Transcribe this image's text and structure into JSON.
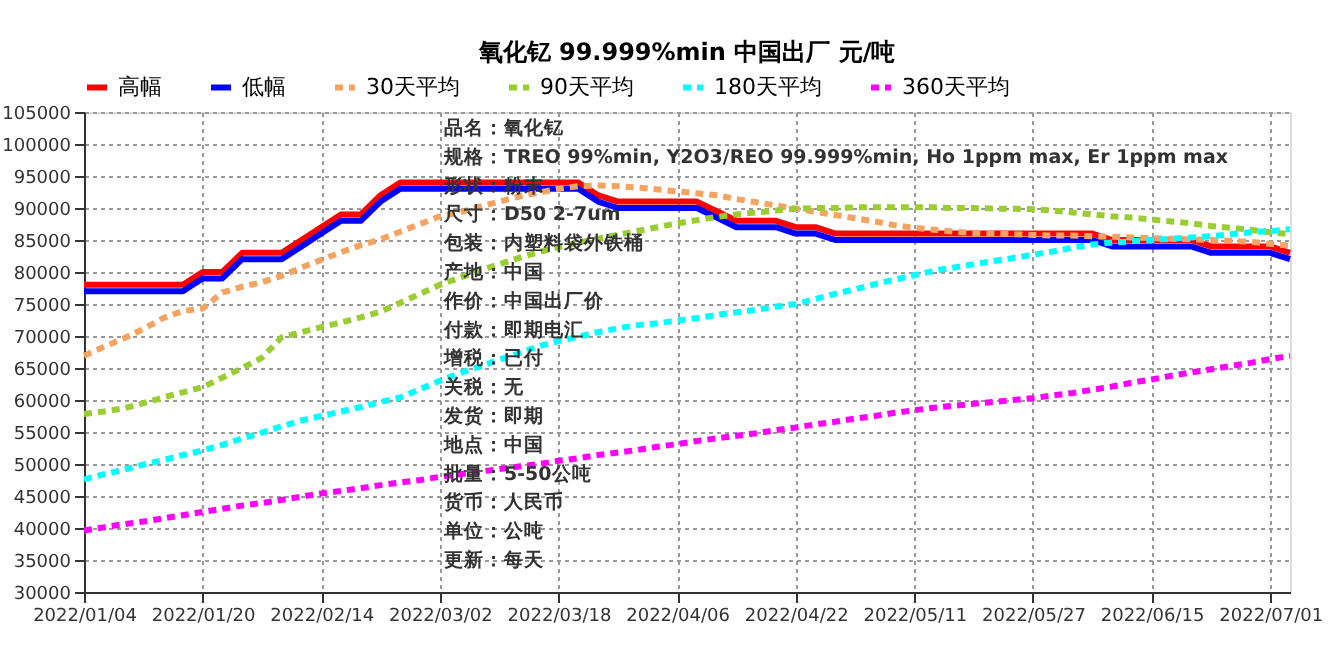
{
  "chart_data": {
    "type": "line",
    "title": "氧化钇 99.999%min 中国出厂 元/吨",
    "categories": [
      "2022/01/04",
      null,
      null,
      null,
      null,
      null,
      "2022/01/20",
      null,
      null,
      null,
      null,
      null,
      "2022/02/14",
      null,
      null,
      null,
      null,
      null,
      "2022/03/02",
      null,
      null,
      null,
      null,
      null,
      "2022/03/18",
      null,
      null,
      null,
      null,
      null,
      "2022/04/06",
      null,
      null,
      null,
      null,
      null,
      "2022/04/22",
      null,
      null,
      null,
      null,
      null,
      "2022/05/11",
      null,
      null,
      null,
      null,
      null,
      "2022/05/27",
      null,
      null,
      null,
      null,
      null,
      "2022/06/15",
      null,
      null,
      null,
      null,
      null,
      "2022/07/01",
      null
    ],
    "series": [
      {
        "name": "高幅",
        "color": "#ff0000",
        "line_style": "solid",
        "values": [
          78000,
          78000,
          78000,
          78000,
          78000,
          78000,
          80000,
          80000,
          83000,
          83000,
          83000,
          85000,
          87000,
          89000,
          89000,
          92000,
          94000,
          94000,
          94000,
          94000,
          94000,
          94000,
          94000,
          94000,
          94000,
          94000,
          92000,
          91000,
          91000,
          91000,
          91000,
          91000,
          89500,
          88000,
          88000,
          88000,
          87000,
          87000,
          86000,
          86000,
          86000,
          86000,
          86000,
          86000,
          86000,
          86000,
          86000,
          86000,
          86000,
          86000,
          86000,
          86000,
          85000,
          85000,
          85000,
          85000,
          85000,
          84000,
          84000,
          84000,
          84000,
          83000
        ]
      },
      {
        "name": "低幅",
        "color": "#0000ff",
        "line_style": "solid",
        "values": [
          77000,
          77000,
          77000,
          77000,
          77000,
          77000,
          79000,
          79000,
          82000,
          82000,
          82000,
          84000,
          86000,
          88000,
          88000,
          91000,
          93000,
          93000,
          93000,
          93000,
          93000,
          93000,
          93000,
          93000,
          93000,
          93000,
          91000,
          90000,
          90000,
          90000,
          90000,
          90000,
          88500,
          87000,
          87000,
          87000,
          86000,
          86000,
          85000,
          85000,
          85000,
          85000,
          85000,
          85000,
          85000,
          85000,
          85000,
          85000,
          85000,
          85000,
          85000,
          85000,
          84000,
          84000,
          84000,
          84000,
          84000,
          83000,
          83000,
          83000,
          83000,
          82000
        ]
      },
      {
        "name": "30天平均",
        "color": "#f4a460",
        "line_style": "dashed",
        "values": [
          66900,
          68300,
          69600,
          71100,
          72800,
          73900,
          74300,
          76800,
          77700,
          78400,
          79400,
          80700,
          81900,
          83100,
          84200,
          85100,
          86300,
          87500,
          88700,
          89300,
          90200,
          91000,
          91800,
          92400,
          93000,
          93400,
          93500,
          93400,
          93200,
          92900,
          92600,
          92300,
          92000,
          91400,
          90900,
          90400,
          89900,
          89400,
          88900,
          88400,
          87900,
          87300,
          86900,
          86600,
          86300,
          86100,
          86000,
          85900,
          85800,
          85700,
          85700,
          85600,
          85500,
          85400,
          85300,
          85200,
          85100,
          85000,
          84900,
          84700,
          84400,
          84100
        ]
      },
      {
        "name": "90天平均",
        "color": "#9acd32",
        "line_style": "dashed",
        "values": [
          57800,
          58200,
          58700,
          59500,
          60400,
          61200,
          62000,
          63500,
          65000,
          66600,
          69800,
          70600,
          71400,
          72100,
          72900,
          73800,
          75200,
          76600,
          78000,
          79100,
          80200,
          81200,
          82200,
          83100,
          83900,
          84600,
          85200,
          85800,
          86400,
          87000,
          87600,
          88100,
          88600,
          89000,
          89300,
          89600,
          89900,
          90000,
          90000,
          90100,
          90100,
          90100,
          90100,
          90100,
          90000,
          90000,
          89900,
          89900,
          89800,
          89600,
          89300,
          89000,
          88700,
          88500,
          88200,
          87900,
          87600,
          87200,
          86900,
          86600,
          86200,
          85900
        ]
      },
      {
        "name": "180天平均",
        "color": "#00ffff",
        "line_style": "dashed",
        "values": [
          47600,
          48400,
          49100,
          49900,
          50600,
          51400,
          52100,
          53000,
          54000,
          54900,
          55900,
          56800,
          57500,
          58200,
          58900,
          59700,
          60400,
          61700,
          63000,
          64200,
          65200,
          66300,
          67300,
          68400,
          69200,
          69900,
          70600,
          71200,
          71700,
          72000,
          72400,
          72800,
          73300,
          73700,
          74100,
          74600,
          75000,
          75800,
          76600,
          77300,
          78100,
          78800,
          79500,
          80200,
          80700,
          81200,
          81700,
          82200,
          82700,
          83200,
          83800,
          84300,
          84600,
          84800,
          85000,
          85200,
          85400,
          85600,
          85900,
          86200,
          86400,
          86700
        ]
      },
      {
        "name": "360天平均",
        "color": "#ff00ff",
        "line_style": "dashed",
        "values": [
          39600,
          40100,
          40600,
          41000,
          41500,
          42000,
          42500,
          43000,
          43500,
          43900,
          44400,
          44900,
          45400,
          45800,
          46200,
          46700,
          47100,
          47500,
          48000,
          48400,
          48800,
          49200,
          49600,
          50000,
          50500,
          50900,
          51400,
          51800,
          52200,
          52700,
          53100,
          53600,
          54000,
          54400,
          54800,
          55300,
          55700,
          56200,
          56600,
          57100,
          57500,
          58000,
          58400,
          58800,
          59100,
          59400,
          59700,
          60000,
          60300,
          60700,
          61100,
          61600,
          62100,
          62700,
          63200,
          63800,
          64300,
          64800,
          65300,
          65800,
          66400,
          66900
        ]
      }
    ],
    "ylim": [
      30000,
      105000
    ],
    "yticks": [
      30000,
      35000,
      40000,
      45000,
      50000,
      55000,
      60000,
      65000,
      70000,
      75000,
      80000,
      85000,
      90000,
      95000,
      100000,
      105000
    ],
    "grid": true,
    "legend": "top",
    "annotations": [
      "品名：氧化钇",
      "规格：TREO 99%min, Y2O3/REO 99.999%min, Ho 1ppm max, Er 1ppm max",
      "形状：粉末",
      "尺寸：D50 2-7um",
      "包装：内塑料袋外铁桶",
      "产地：中国",
      "作价：中国出厂价",
      "付款：即期电汇",
      "增税：已付",
      "关税：无",
      "发货：即期",
      "地点：中国",
      "批量：5-50公吨",
      "货币：人民币",
      "单位：公吨",
      "更新：每天"
    ]
  }
}
